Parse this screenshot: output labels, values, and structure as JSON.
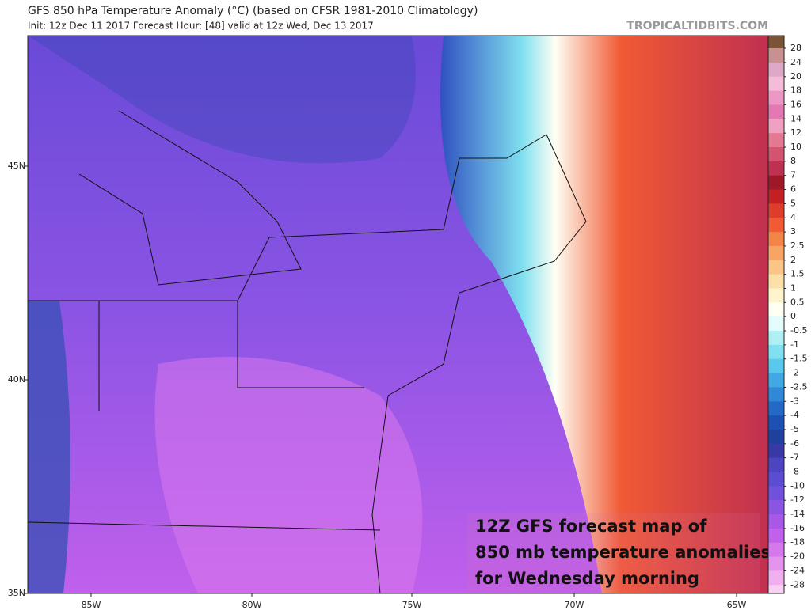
{
  "header": {
    "title": "GFS 850 hPa Temperature Anomaly (°C) (based on CFSR 1981-2010 Climatology)",
    "subtitle": "Init: 12z Dec 11 2017   Forecast Hour: [48]   valid at 12z Wed, Dec 13 2017",
    "site": "TROPICALTIDBITS.COM"
  },
  "map": {
    "lat_labels": [
      "45N",
      "40N",
      "35N"
    ],
    "lon_labels": [
      "85W",
      "80W",
      "75W",
      "70W",
      "65W"
    ],
    "annotation": [
      "12Z GFS forecast map of",
      "850 mb temperature anomalies",
      "for Wednesday morning"
    ]
  },
  "colorbar": {
    "top_color": "#7a5434",
    "levels": [
      {
        "value": 28,
        "color": "#c89090"
      },
      {
        "value": 24,
        "color": "#e0a8c8"
      },
      {
        "value": 20,
        "color": "#f4bcd8"
      },
      {
        "value": 18,
        "color": "#ec98c4"
      },
      {
        "value": 16,
        "color": "#e478b4"
      },
      {
        "value": 14,
        "color": "#f0a0c0"
      },
      {
        "value": 12,
        "color": "#e47890"
      },
      {
        "value": 10,
        "color": "#d45470"
      },
      {
        "value": 8,
        "color": "#c03050"
      },
      {
        "value": 7,
        "color": "#a01828"
      },
      {
        "value": 6,
        "color": "#c42024"
      },
      {
        "value": 5,
        "color": "#e03c2c"
      },
      {
        "value": 4,
        "color": "#f05a34"
      },
      {
        "value": 3,
        "color": "#f48448"
      },
      {
        "value": 2.5,
        "color": "#f8a464"
      },
      {
        "value": 2,
        "color": "#fcc488"
      },
      {
        "value": 1.5,
        "color": "#fde0a8"
      },
      {
        "value": 1,
        "color": "#fff4cc"
      },
      {
        "value": 0.5,
        "color": "#fffff4"
      },
      {
        "value": 0,
        "color": "#e4fcfc"
      },
      {
        "value": -0.5,
        "color": "#b0f0f4"
      },
      {
        "value": -1,
        "color": "#80e0f0"
      },
      {
        "value": -1.5,
        "color": "#58c8ec"
      },
      {
        "value": -2,
        "color": "#40a8e4"
      },
      {
        "value": -2.5,
        "color": "#3088d8"
      },
      {
        "value": -3,
        "color": "#2468c8"
      },
      {
        "value": -4,
        "color": "#1c50b4"
      },
      {
        "value": -5,
        "color": "#2040a0"
      },
      {
        "value": -6,
        "color": "#3838a8"
      },
      {
        "value": -7,
        "color": "#4c44c0"
      },
      {
        "value": -8,
        "color": "#5c4cd4"
      },
      {
        "value": -10,
        "color": "#7050dc"
      },
      {
        "value": -12,
        "color": "#8c54e4"
      },
      {
        "value": -14,
        "color": "#a858e8"
      },
      {
        "value": -16,
        "color": "#c060ec"
      },
      {
        "value": -18,
        "color": "#d478ec"
      },
      {
        "value": -20,
        "color": "#e494ec"
      },
      {
        "value": -24,
        "color": "#f0b0f0"
      },
      {
        "value": -28,
        "color": "#f8d0f4"
      }
    ]
  }
}
